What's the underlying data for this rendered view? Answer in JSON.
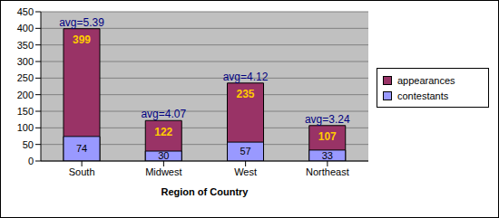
{
  "chart_data": {
    "type": "bar",
    "categories": [
      "South",
      "Midwest",
      "West",
      "Northeast"
    ],
    "series": [
      {
        "name": "appearances",
        "color": "#993366",
        "values": [
          399,
          122,
          235,
          107
        ]
      },
      {
        "name": "contestants",
        "color": "#9999FF",
        "values": [
          74,
          30,
          57,
          33
        ]
      }
    ],
    "annotations": [
      "avg=5.39",
      "avg=4.07",
      "avg=4.12",
      "avg=3.24"
    ],
    "x_label": "Region of Country",
    "ylim": [
      0,
      450
    ],
    "yticks": [
      0,
      50,
      100,
      150,
      200,
      250,
      300,
      350,
      400,
      450
    ],
    "grid": true,
    "legend": "right",
    "data_labels": true,
    "stacked": false
  }
}
